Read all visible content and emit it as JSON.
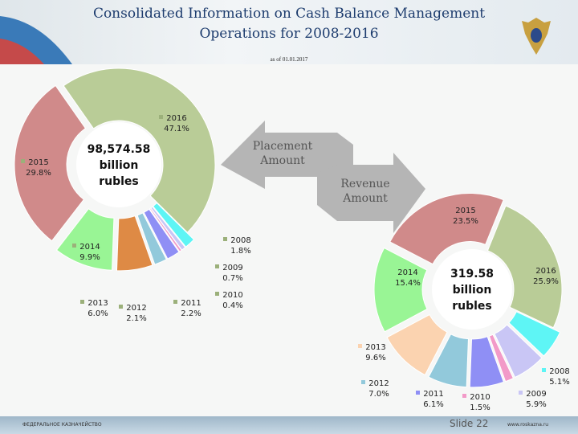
{
  "header": {
    "title_line1": "Consolidated Information on Cash Balance Management",
    "title_line2": "Operations for 2008-2016",
    "as_of": "as of 01.01.2017"
  },
  "arrows": {
    "placement": "Placement Amount",
    "revenue": "Revenue Amount"
  },
  "footer": {
    "org": "ФЕДЕРАЛЬНОЕ КАЗНАЧЕЙСТВО",
    "slide": "Slide 22",
    "url": "www.roskazna.ru"
  },
  "chart_data": [
    {
      "type": "pie",
      "title": "Placement Amount",
      "center_label": [
        "98,574.58",
        "billion",
        "rubles"
      ],
      "categories": [
        "2016",
        "2008",
        "2009",
        "2010",
        "2011",
        "2012",
        "2013",
        "2014",
        "2015"
      ],
      "values": [
        47.1,
        1.8,
        0.7,
        0.4,
        2.2,
        2.1,
        6.0,
        9.9,
        29.8
      ],
      "labels": [
        "47.1%",
        "1.8%",
        "0.7%",
        "0.4%",
        "2.2%",
        "2.1%",
        "6.0%",
        "9.9%",
        "29.8%"
      ],
      "colors": [
        "#b9cc97",
        "#5ef5f5",
        "#c9c6f5",
        "#f29ac8",
        "#8f8ff5",
        "#92c9db",
        "#de8a45",
        "#99f595",
        "#d08a8a"
      ]
    },
    {
      "type": "pie",
      "title": "Revenue Amount",
      "center_label": [
        "319.58",
        "billion",
        "rubles"
      ],
      "categories": [
        "2016",
        "2008",
        "2009",
        "2010",
        "2011",
        "2012",
        "2013",
        "2014",
        "2015"
      ],
      "values": [
        25.9,
        5.1,
        5.9,
        1.5,
        6.1,
        7.0,
        9.6,
        15.4,
        23.5
      ],
      "labels": [
        "25.9%",
        "5.1%",
        "5.9%",
        "1.5%",
        "6.1%",
        "7.0%",
        "9.6%",
        "15.4%",
        "23.5%"
      ],
      "colors": [
        "#b9cc97",
        "#5ef5f5",
        "#c9c6f5",
        "#f29ac8",
        "#8f8ff5",
        "#92c9db",
        "#fbd3b0",
        "#99f595",
        "#d08a8a"
      ]
    }
  ]
}
